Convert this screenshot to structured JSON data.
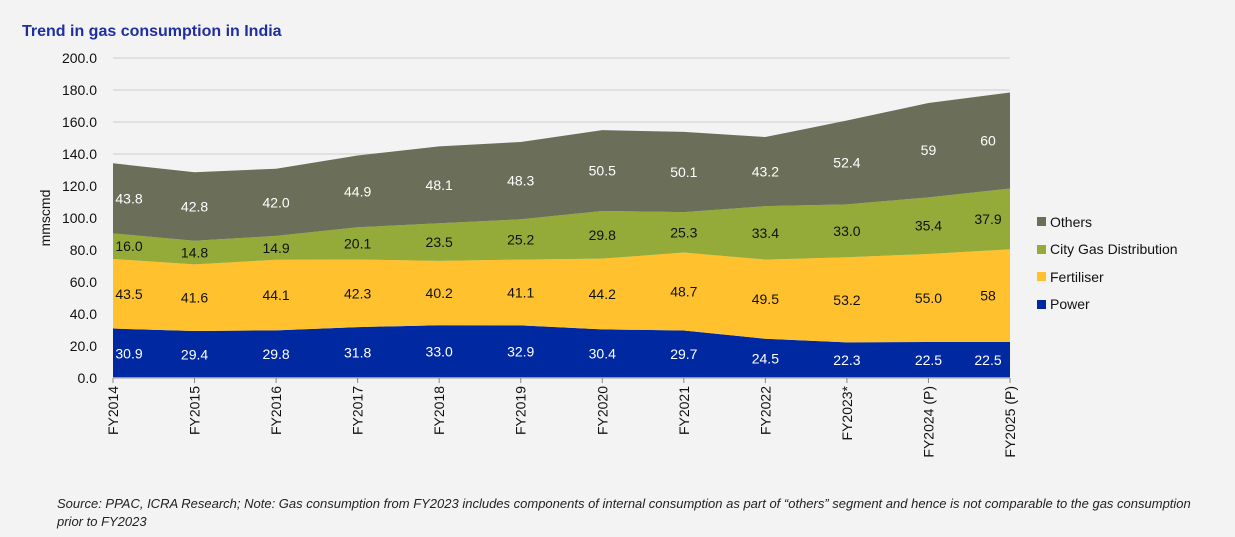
{
  "chart_data": {
    "type": "area",
    "stacked": true,
    "title": "Trend in gas consumption in India",
    "ylabel": "mmscmd",
    "xlabel": "",
    "ylim": [
      0,
      200
    ],
    "yticks": [
      "0.0",
      "20.0",
      "40.0",
      "60.0",
      "80.0",
      "100.0",
      "120.0",
      "140.0",
      "160.0",
      "180.0",
      "200.0"
    ],
    "grid": true,
    "legend_position": "right",
    "categories": [
      "FY2014",
      "FY2015",
      "FY2016",
      "FY2017",
      "FY2018",
      "FY2019",
      "FY2020",
      "FY2021",
      "FY2022",
      "FY2023*",
      "FY2024 (P)",
      "FY2025 (P)"
    ],
    "series": [
      {
        "name": "Power",
        "color": "#0028a0",
        "label_color": "#ffffff",
        "values": [
          30.9,
          29.4,
          29.8,
          31.8,
          33.0,
          32.9,
          30.4,
          29.7,
          24.5,
          22.3,
          22.5,
          22.5
        ],
        "labels": [
          "30.9",
          "29.4",
          "29.8",
          "31.8",
          "33.0",
          "32.9",
          "30.4",
          "29.7",
          "24.5",
          "22.3",
          "22.5",
          "22.5"
        ]
      },
      {
        "name": "Fertiliser",
        "color": "#ffc22e",
        "label_color": "#111111",
        "values": [
          43.5,
          41.6,
          44.1,
          42.3,
          40.2,
          41.1,
          44.2,
          48.7,
          49.5,
          53.2,
          55.0,
          58
        ],
        "labels": [
          "43.5",
          "41.6",
          "44.1",
          "42.3",
          "40.2",
          "41.1",
          "44.2",
          "48.7",
          "49.5",
          "53.2",
          "55.0",
          "58"
        ]
      },
      {
        "name": "City Gas Distribution",
        "color": "#94ab3a",
        "label_color": "#111111",
        "values": [
          16.0,
          14.8,
          14.9,
          20.1,
          23.5,
          25.2,
          29.8,
          25.3,
          33.4,
          33.0,
          35.4,
          37.9
        ],
        "labels": [
          "16.0",
          "14.8",
          "14.9",
          "20.1",
          "23.5",
          "25.2",
          "29.8",
          "25.3",
          "33.4",
          "33.0",
          "35.4",
          "37.9"
        ]
      },
      {
        "name": "Others",
        "color": "#6b6e58",
        "label_color": "#ffffff",
        "values": [
          43.8,
          42.8,
          42.0,
          44.9,
          48.1,
          48.3,
          50.5,
          50.1,
          43.2,
          52.4,
          59,
          60
        ],
        "labels": [
          "43.8",
          "42.8",
          "42.0",
          "44.9",
          "48.1",
          "48.3",
          "50.5",
          "50.1",
          "43.2",
          "52.4",
          "59",
          "60"
        ]
      }
    ]
  },
  "source_note": "Source: PPAC, ICRA Research; Note: Gas consumption from FY2023 includes components of internal consumption as part of “others” segment and hence is not comparable to the gas consumption prior to FY2023"
}
